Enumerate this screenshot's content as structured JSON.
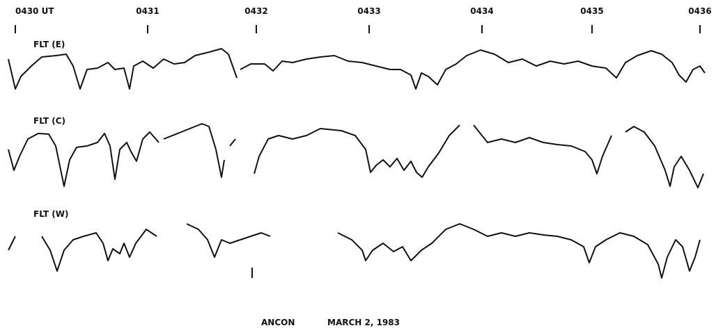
{
  "header": {
    "times": [
      "0430 UT",
      "0431",
      "0432",
      "0433",
      "0434",
      "0435",
      "0436"
    ]
  },
  "traces": [
    {
      "label": "FLT (E)"
    },
    {
      "label": "FLT (C)"
    },
    {
      "label": "FLT (W)"
    }
  ],
  "caption": {
    "site": "ANCON",
    "date": "MARCH 2, 1983"
  }
}
